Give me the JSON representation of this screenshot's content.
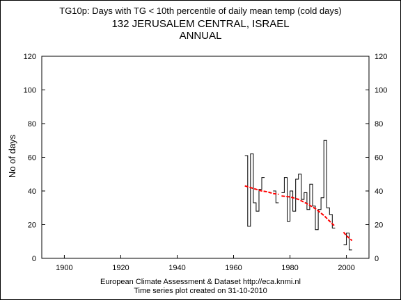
{
  "header": {
    "title": "TG10p: Days with TG < 10th percentile of daily mean temp (cold days)",
    "station": "132 JERUSALEM CENTRAL, ISRAEL",
    "period": "ANNUAL"
  },
  "footer": {
    "source": "European Climate Assessment & Dataset  http://eca.knmi.nl",
    "created": "Time series plot created on 31-10-2010"
  },
  "colors": {
    "series": "#000000",
    "trend": "#ff0000",
    "axis": "#000000"
  },
  "chart_data": {
    "type": "line",
    "style": "step",
    "ylabel": "No of days",
    "xlabel": "",
    "xlim": [
      1892,
      2008
    ],
    "ylim": [
      0,
      120
    ],
    "xticks": [
      1900,
      1920,
      1940,
      1960,
      1980,
      2000
    ],
    "yticks": [
      0,
      20,
      40,
      60,
      80,
      100,
      120
    ],
    "grid": false,
    "series": [
      {
        "values": [
          [
            1964,
            61
          ],
          [
            1965,
            19
          ],
          [
            1966,
            62
          ],
          [
            1967,
            33
          ],
          [
            1968,
            28
          ],
          [
            1969,
            41
          ],
          [
            1970,
            48
          ],
          [
            1974,
            40
          ],
          [
            1975,
            33
          ],
          [
            1977,
            39
          ],
          [
            1978,
            48
          ],
          [
            1979,
            22
          ],
          [
            1980,
            40
          ],
          [
            1981,
            28
          ],
          [
            1982,
            47
          ],
          [
            1983,
            50
          ],
          [
            1984,
            35
          ],
          [
            1985,
            39
          ],
          [
            1986,
            29
          ],
          [
            1987,
            44
          ],
          [
            1988,
            31
          ],
          [
            1989,
            17
          ],
          [
            1990,
            29
          ],
          [
            1991,
            36
          ],
          [
            1992,
            70
          ],
          [
            1993,
            30
          ],
          [
            1994,
            26
          ],
          [
            1995,
            18
          ],
          [
            1999,
            8
          ],
          [
            2000,
            15
          ],
          [
            2001,
            5
          ]
        ]
      }
    ],
    "trend": [
      {
        "values": [
          [
            1964,
            43
          ],
          [
            1966,
            42
          ],
          [
            1968,
            41
          ],
          [
            1970,
            40
          ],
          [
            1972,
            39.5
          ],
          [
            1974,
            38.5
          ],
          [
            1976,
            38
          ]
        ]
      },
      {
        "values": [
          [
            1977,
            37
          ],
          [
            1980,
            36.5
          ],
          [
            1983,
            35
          ],
          [
            1986,
            32.5
          ],
          [
            1989,
            29.5
          ],
          [
            1992,
            25.5
          ],
          [
            1995,
            20.5
          ],
          [
            1996,
            19
          ]
        ]
      },
      {
        "values": [
          [
            1999,
            15.5
          ],
          [
            2000,
            13.5
          ],
          [
            2001,
            12
          ],
          [
            2002,
            10.5
          ]
        ]
      }
    ]
  }
}
